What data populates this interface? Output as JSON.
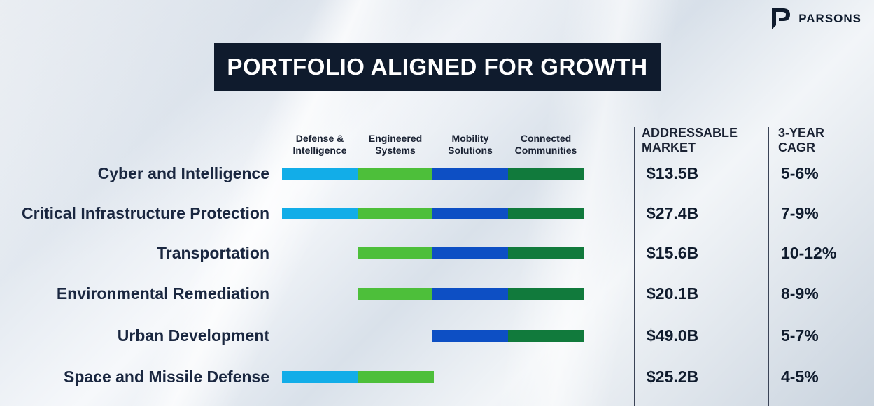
{
  "brand": {
    "logo_text": "PARSONS",
    "logo_icon": "parsons-p-logo-icon"
  },
  "title": "PORTFOLIO ALIGNED FOR GROWTH",
  "chart_data": {
    "type": "table",
    "segments": [
      {
        "label_lines": [
          "Defense &",
          "Intelligence"
        ],
        "color": "#12ade8"
      },
      {
        "label_lines": [
          "Engineered",
          "Systems"
        ],
        "color": "#4dbf3a"
      },
      {
        "label_lines": [
          "Mobility",
          "Solutions"
        ],
        "color": "#0d4fc4"
      },
      {
        "label_lines": [
          "Connected",
          "Communities"
        ],
        "color": "#117a3c"
      }
    ],
    "metric_headers": [
      {
        "lines": [
          "ADDRESSABLE",
          "MARKET"
        ]
      },
      {
        "lines": [
          "3-YEAR",
          "CAGR"
        ]
      }
    ],
    "rows": [
      {
        "label": "Cyber and Intelligence",
        "segments": [
          true,
          true,
          true,
          true
        ],
        "market": "$13.5B",
        "cagr": "5-6%"
      },
      {
        "label": "Critical Infrastructure Protection",
        "segments": [
          true,
          true,
          true,
          true
        ],
        "market": "$27.4B",
        "cagr": "7-9%"
      },
      {
        "label": "Transportation",
        "segments": [
          false,
          true,
          true,
          true
        ],
        "market": "$15.6B",
        "cagr": "10-12%"
      },
      {
        "label": "Environmental Remediation",
        "segments": [
          false,
          true,
          true,
          true
        ],
        "market": "$20.1B",
        "cagr": "8-9%"
      },
      {
        "label": "Urban Development",
        "segments": [
          false,
          false,
          true,
          true
        ],
        "market": "$49.0B",
        "cagr": "5-7%"
      },
      {
        "label": "Space and Missile Defense",
        "segments": [
          true,
          true,
          false,
          false
        ],
        "market": "$25.2B",
        "cagr": "4-5%"
      }
    ]
  }
}
